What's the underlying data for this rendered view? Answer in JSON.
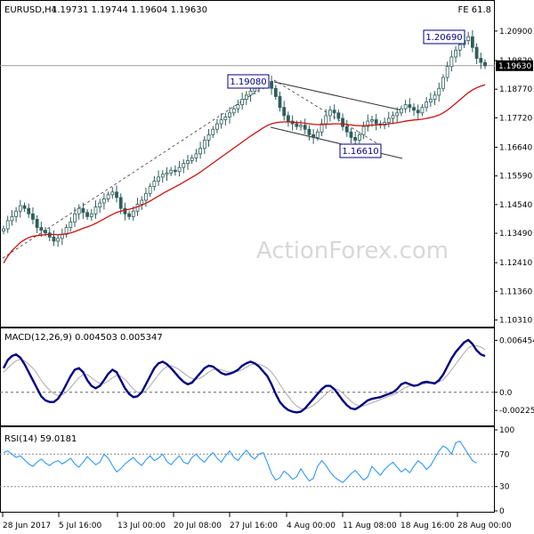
{
  "header": {
    "symbol": "EURUSD,H4",
    "ohlc": "1.19731 1.19744 1.19604 1.19630",
    "fe": "FE 61.8"
  },
  "watermark": "ActionForex.com",
  "colors": {
    "candle": "#2e5e5c",
    "ma": "#cc1111",
    "macd": "#000080",
    "signal": "#aaaaaa",
    "rsi": "#1e90ff",
    "zero": "#606060"
  },
  "chart_data": [
    {
      "type": "candlestick",
      "title": "EURUSD,H4",
      "ylim": [
        1.101,
        1.2145
      ],
      "y_ticks": [
        "1.20900",
        "1.19820",
        "1.18770",
        "1.17720",
        "1.16640",
        "1.15590",
        "1.14540",
        "1.13490",
        "1.12410",
        "1.11360",
        "1.10310"
      ],
      "current_price": "1.19630",
      "annotations": [
        "1.20690",
        "1.19080",
        "1.16610"
      ],
      "series": [
        {
          "name": "price",
          "values": [
            1.1365,
            1.1395,
            1.141,
            1.143,
            1.145,
            1.144,
            1.142,
            1.14,
            1.137,
            1.136,
            1.135,
            1.1335,
            1.132,
            1.133,
            1.1345,
            1.137,
            1.139,
            1.142,
            1.144,
            1.1425,
            1.141,
            1.142,
            1.1445,
            1.146,
            1.1475,
            1.149,
            1.15,
            1.148,
            1.144,
            1.142,
            1.141,
            1.143,
            1.1455,
            1.147,
            1.1495,
            1.152,
            1.154,
            1.1555,
            1.1565,
            1.157,
            1.158,
            1.1575,
            1.159,
            1.1605,
            1.1615,
            1.1625,
            1.164,
            1.166,
            1.169,
            1.171,
            1.173,
            1.175,
            1.1765,
            1.1775,
            1.179,
            1.1805,
            1.182,
            1.184,
            1.1855,
            1.187,
            1.188,
            1.1895,
            1.19,
            1.1905,
            1.188,
            1.185,
            1.181,
            1.178,
            1.176,
            1.175,
            1.174,
            1.1745,
            1.173,
            1.171,
            1.17,
            1.172,
            1.175,
            1.178,
            1.18,
            1.179,
            1.177,
            1.174,
            1.172,
            1.17,
            1.169,
            1.171,
            1.174,
            1.176,
            1.1765,
            1.175,
            1.1745,
            1.1755,
            1.177,
            1.178,
            1.179,
            1.1805,
            1.182,
            1.181,
            1.18,
            1.179,
            1.181,
            1.183,
            1.184,
            1.1855,
            1.188,
            1.192,
            1.196,
            1.1995,
            1.202,
            1.204,
            1.2055,
            1.2069,
            1.203,
            1.199,
            1.1975,
            1.1963
          ]
        },
        {
          "name": "moving average",
          "values": [
            1.124,
            1.1265,
            1.1285,
            1.13,
            1.1315,
            1.1325,
            1.1333,
            1.1338,
            1.134,
            1.1342,
            1.1344,
            1.1345,
            1.1344,
            1.1344,
            1.1345,
            1.1347,
            1.135,
            1.1355,
            1.1361,
            1.1367,
            1.1372,
            1.1378,
            1.1385,
            1.1393,
            1.1401,
            1.141,
            1.1418,
            1.1425,
            1.143,
            1.1434,
            1.1437,
            1.1441,
            1.1446,
            1.1452,
            1.1459,
            1.1467,
            1.1476,
            1.1485,
            1.1494,
            1.1503,
            1.1511,
            1.1519,
            1.1527,
            1.1536,
            1.1545,
            1.1554,
            1.1563,
            1.1573,
            1.1584,
            1.1595,
            1.1606,
            1.1617,
            1.1628,
            1.1639,
            1.165,
            1.1661,
            1.1672,
            1.1683,
            1.1694,
            1.1705,
            1.1715,
            1.1725,
            1.1735,
            1.1744,
            1.175,
            1.1754,
            1.1756,
            1.1757,
            1.1757,
            1.1756,
            1.1755,
            1.1754,
            1.1752,
            1.175,
            1.1748,
            1.1747,
            1.1747,
            1.1748,
            1.1749,
            1.175,
            1.175,
            1.1749,
            1.1748,
            1.1746,
            1.1744,
            1.1743,
            1.1743,
            1.1744,
            1.1745,
            1.1746,
            1.1747,
            1.1748,
            1.175,
            1.1752,
            1.1754,
            1.1757,
            1.176,
            1.1762,
            1.1764,
            1.1765,
            1.1767,
            1.177,
            1.1773,
            1.1777,
            1.1782,
            1.179,
            1.18,
            1.1812,
            1.1825,
            1.1838,
            1.1851,
            1.1864,
            1.1874,
            1.1882,
            1.1888,
            1.1893
          ]
        }
      ]
    },
    {
      "type": "line",
      "title": "MACD(12,26,9) 0.004503 0.005347",
      "ylim": [
        -0.004,
        0.0076
      ],
      "y_ticks": [
        "0.006454",
        "0.0",
        "-0.002252"
      ],
      "series": [
        {
          "name": "MACD",
          "values": [
            0.003,
            0.004,
            0.0045,
            0.0047,
            0.0043,
            0.0035,
            0.0025,
            0.0015,
            0.0005,
            -0.0005,
            -0.001,
            -0.0012,
            -0.0012,
            -0.0008,
            0.0,
            0.001,
            0.002,
            0.0028,
            0.003,
            0.0025,
            0.0015,
            0.0008,
            0.0005,
            0.0008,
            0.0015,
            0.0023,
            0.0028,
            0.0025,
            0.0015,
            0.0005,
            -0.0002,
            -0.0006,
            -0.0005,
            0.0,
            0.001,
            0.002,
            0.003,
            0.0036,
            0.0038,
            0.0035,
            0.003,
            0.0024,
            0.0018,
            0.0013,
            0.001,
            0.0012,
            0.0018,
            0.0024,
            0.003,
            0.0033,
            0.0032,
            0.0028,
            0.0024,
            0.0022,
            0.0023,
            0.0025,
            0.0028,
            0.0033,
            0.0036,
            0.0038,
            0.0036,
            0.0032,
            0.0026,
            0.002,
            0.001,
            -0.0002,
            -0.0012,
            -0.0018,
            -0.0022,
            -0.0024,
            -0.0025,
            -0.0024,
            -0.002,
            -0.0014,
            -0.0008,
            -0.0002,
            0.0004,
            0.0008,
            0.0008,
            0.0004,
            -0.0003,
            -0.001,
            -0.0016,
            -0.002,
            -0.0021,
            -0.0018,
            -0.0014,
            -0.001,
            -0.0008,
            -0.0007,
            -0.0006,
            -0.0004,
            -0.0002,
            0.0,
            0.0004,
            0.001,
            0.0012,
            0.001,
            0.0008,
            0.0009,
            0.0012,
            0.0013,
            0.0012,
            0.0011,
            0.0015,
            0.0022,
            0.0032,
            0.0042,
            0.005,
            0.0056,
            0.0062,
            0.0065,
            0.006,
            0.0052,
            0.0047,
            0.0045
          ]
        },
        {
          "name": "Signal",
          "values": [
            0.0025,
            0.003,
            0.0035,
            0.0039,
            0.0041,
            0.0039,
            0.0035,
            0.003,
            0.0023,
            0.0015,
            0.0008,
            0.0003,
            -0.0002,
            -0.0004,
            -0.0003,
            0.0,
            0.0006,
            0.0012,
            0.0018,
            0.0022,
            0.0022,
            0.0018,
            0.0014,
            0.0011,
            0.0011,
            0.0014,
            0.0018,
            0.0021,
            0.002,
            0.0016,
            0.001,
            0.0004,
            0.0,
            -0.0001,
            0.0002,
            0.0008,
            0.0015,
            0.0022,
            0.0028,
            0.0032,
            0.0033,
            0.0031,
            0.0028,
            0.0024,
            0.002,
            0.0017,
            0.0016,
            0.0018,
            0.0021,
            0.0025,
            0.0028,
            0.0029,
            0.0028,
            0.0026,
            0.0025,
            0.0025,
            0.0026,
            0.0028,
            0.0031,
            0.0034,
            0.0035,
            0.0035,
            0.0033,
            0.003,
            0.0025,
            0.0018,
            0.001,
            0.0002,
            -0.0005,
            -0.0012,
            -0.0017,
            -0.002,
            -0.0021,
            -0.0019,
            -0.0016,
            -0.0012,
            -0.0007,
            -0.0002,
            0.0002,
            0.0004,
            0.0003,
            -0.0001,
            -0.0006,
            -0.0011,
            -0.0015,
            -0.0017,
            -0.0017,
            -0.0015,
            -0.0013,
            -0.0011,
            -0.0009,
            -0.0007,
            -0.0005,
            -0.0003,
            -0.0001,
            0.0003,
            0.0006,
            0.0008,
            0.0009,
            0.0009,
            0.001,
            0.0011,
            0.0012,
            0.0012,
            0.0013,
            0.0016,
            0.0021,
            0.0028,
            0.0035,
            0.0042,
            0.0049,
            0.0055,
            0.0058,
            0.0058,
            0.0056,
            0.0053
          ]
        }
      ]
    },
    {
      "type": "line",
      "title": "RSI(14) 59.0181",
      "ylim": [
        0,
        100
      ],
      "y_ticks": [
        "100",
        "70",
        "30",
        "0"
      ],
      "levels": [
        70,
        30
      ],
      "series": [
        {
          "name": "RSI(14)",
          "values": [
            72,
            74,
            70,
            66,
            68,
            63,
            58,
            55,
            60,
            64,
            59,
            56,
            60,
            62,
            58,
            61,
            65,
            58,
            54,
            60,
            67,
            62,
            57,
            60,
            70,
            65,
            56,
            48,
            52,
            58,
            62,
            66,
            60,
            56,
            63,
            68,
            62,
            65,
            70,
            61,
            57,
            63,
            68,
            60,
            58,
            66,
            70,
            64,
            60,
            67,
            72,
            65,
            60,
            68,
            74,
            66,
            62,
            69,
            75,
            68,
            64,
            70,
            72,
            60,
            46,
            38,
            41,
            49,
            45,
            39,
            42,
            52,
            44,
            37,
            40,
            55,
            62,
            56,
            48,
            42,
            38,
            35,
            40,
            46,
            50,
            44,
            38,
            42,
            55,
            49,
            44,
            51,
            56,
            60,
            54,
            48,
            52,
            47,
            55,
            62,
            58,
            51,
            56,
            65,
            74,
            80,
            77,
            70,
            84,
            86,
            78,
            70,
            62,
            59
          ]
        }
      ]
    }
  ],
  "x_axis": {
    "tick_labels": [
      "28 Jun 2017",
      "5 Jul 16:00",
      "13 Jul 00:00",
      "20 Jul 08:00",
      "27 Jul 16:00",
      "4 Aug 00:00",
      "11 Aug 08:00",
      "18 Aug 16:00",
      "28 Aug 00:00"
    ]
  }
}
